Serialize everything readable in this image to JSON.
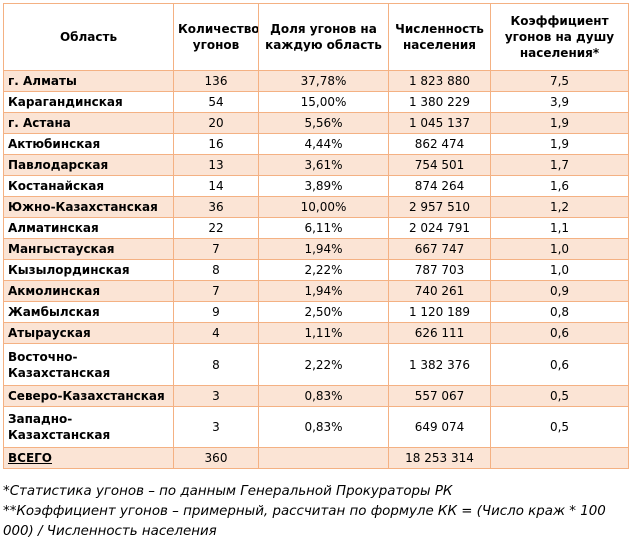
{
  "table": {
    "header": [
      "Область",
      "Количество угонов",
      "Доля угонов на каждую область",
      "Численность населения",
      "Коэффициент угонов на душу населения*"
    ],
    "rows": [
      [
        "г. Алматы",
        "136",
        "37,78%",
        "1 823 880",
        "7,5"
      ],
      [
        "Карагандинская",
        "54",
        "15,00%",
        "1 380 229",
        "3,9"
      ],
      [
        "г. Астана",
        "20",
        "5,56%",
        "1 045 137",
        "1,9"
      ],
      [
        "Актюбинская",
        "16",
        "4,44%",
        "862 474",
        "1,9"
      ],
      [
        "Павлодарская",
        "13",
        "3,61%",
        "754 501",
        "1,7"
      ],
      [
        "Костанайская",
        "14",
        "3,89%",
        "874 264",
        "1,6"
      ],
      [
        "Южно-Казахстанская",
        "36",
        "10,00%",
        "2 957 510",
        "1,2"
      ],
      [
        "Алматинская",
        "22",
        "6,11%",
        "2 024 791",
        "1,1"
      ],
      [
        "Мангыстауская",
        "7",
        "1,94%",
        "667 747",
        "1,0"
      ],
      [
        "Кызылординская",
        "8",
        "2,22%",
        "787 703",
        "1,0"
      ],
      [
        "Акмолинская",
        "7",
        "1,94%",
        "740 261",
        "0,9"
      ],
      [
        "Жамбылская",
        "9",
        "2,50%",
        "1 120 189",
        "0,8"
      ],
      [
        "Атырауская",
        "4",
        "1,11%",
        "626 111",
        "0,6"
      ],
      [
        "Восточно-Казахстанская",
        "8",
        "2,22%",
        "1 382 376",
        "0,6"
      ],
      [
        "Северо-Казахстанская",
        "3",
        "0,83%",
        "557 067",
        "0,5"
      ],
      [
        "Западно-Казахстанская",
        "3",
        "0,83%",
        "649 074",
        "0,5"
      ]
    ],
    "total": {
      "label": "ВСЕГО",
      "count": "360",
      "population": "18 253 314"
    }
  },
  "footnotes": [
    "*Статистика угонов – по данным Генеральной Прокураторы РК",
    "**Коэффициент угонов – примерный, рассчитан по формуле КК = (Число краж * 100 000) / Численность населения"
  ]
}
